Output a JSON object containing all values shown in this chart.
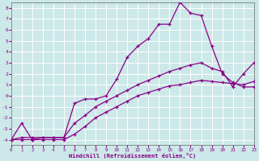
{
  "xlabel": "Windchill (Refroidissement éolien,°C)",
  "bg_color": "#cce8e8",
  "grid_color": "#b0d8d8",
  "line_color": "#880088",
  "x_ticks": [
    0,
    1,
    2,
    3,
    4,
    5,
    6,
    7,
    8,
    9,
    10,
    11,
    12,
    13,
    14,
    15,
    16,
    17,
    18,
    19,
    20,
    21,
    22,
    23
  ],
  "y_ticks": [
    -4,
    -3,
    -2,
    -1,
    0,
    1,
    2,
    3,
    4,
    5,
    6,
    7,
    8
  ],
  "xlim": [
    0,
    23
  ],
  "ylim": [
    -4.5,
    8.5
  ],
  "series": [
    {
      "x": [
        0,
        1,
        2,
        3,
        4,
        5,
        6,
        7,
        8,
        9,
        10,
        11,
        12,
        13,
        14,
        15,
        16,
        17,
        18,
        19,
        20,
        21,
        22,
        23
      ],
      "y": [
        -4,
        -2.5,
        -4,
        -3.8,
        -3.8,
        -3.8,
        -0.7,
        -0.3,
        -0.3,
        0.0,
        1.5,
        3.5,
        4.5,
        5.2,
        6.5,
        6.5,
        8.5,
        7.5,
        7.3,
        4.5,
        2.0,
        1.2,
        0.8,
        0.8
      ]
    },
    {
      "x": [
        0,
        1,
        2,
        3,
        4,
        5,
        6,
        7,
        8,
        9,
        10,
        11,
        12,
        13,
        14,
        15,
        16,
        17,
        18,
        19,
        20,
        21,
        22,
        23
      ],
      "y": [
        -4,
        -3.8,
        -3.8,
        -3.8,
        -3.8,
        -3.8,
        -2.5,
        -1.8,
        -1.0,
        -0.5,
        0.0,
        0.5,
        1.0,
        1.4,
        1.8,
        2.2,
        2.5,
        2.8,
        3.0,
        2.5,
        2.2,
        0.8,
        2.0,
        3.0
      ]
    },
    {
      "x": [
        0,
        1,
        2,
        3,
        4,
        5,
        6,
        7,
        8,
        9,
        10,
        11,
        12,
        13,
        14,
        15,
        16,
        17,
        18,
        19,
        20,
        21,
        22,
        23
      ],
      "y": [
        -4,
        -4,
        -4,
        -4,
        -4,
        -4,
        -3.5,
        -2.8,
        -2.0,
        -1.5,
        -1.0,
        -0.5,
        0.0,
        0.3,
        0.6,
        0.9,
        1.0,
        1.2,
        1.4,
        1.3,
        1.2,
        1.1,
        1.0,
        1.3
      ]
    }
  ]
}
